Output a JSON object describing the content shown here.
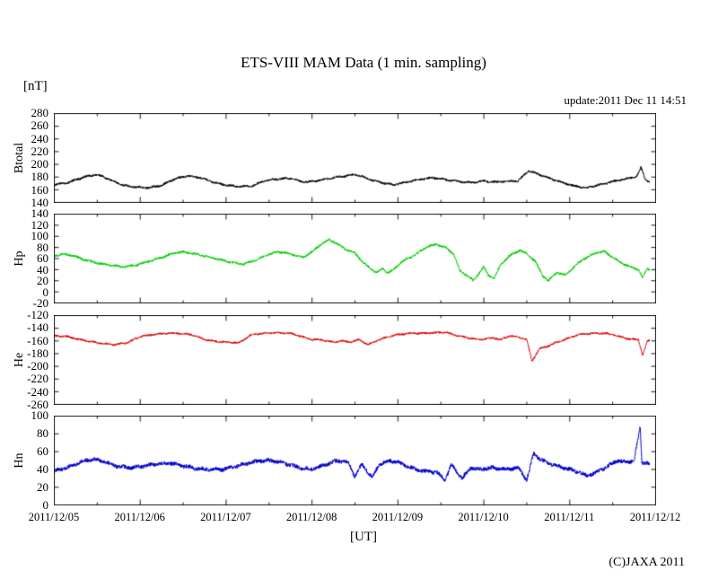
{
  "title": "ETS-VIII MAM Data (1 min. sampling)",
  "unit_label": "[nT]",
  "update_text": "update:2011 Dec 11 14:51",
  "copyright": "(C)JAXA 2011",
  "xaxis": {
    "label": "[UT]",
    "tick_labels": [
      "2011/12/05",
      "2011/12/06",
      "2011/12/07",
      "2011/12/08",
      "2011/12/09",
      "2011/12/10",
      "2011/12/11",
      "2011/12/12"
    ],
    "range_days": [
      0,
      7
    ],
    "minor_ticks_per_day": 2
  },
  "colors": {
    "btotal": "#000000",
    "hp": "#00CC00",
    "he": "#DD0000",
    "hn": "#0000CC",
    "frame": "#1a1a1a"
  },
  "chart_data": [
    {
      "type": "line",
      "name": "Btotal",
      "color_key": "btotal",
      "ylim": [
        140,
        280
      ],
      "yticks": [
        140,
        160,
        180,
        200,
        220,
        240,
        260,
        280
      ],
      "noise_amp": 1.7,
      "seed": 11,
      "keypoints": [
        [
          0,
          168
        ],
        [
          0.15,
          171
        ],
        [
          0.35,
          180
        ],
        [
          0.5,
          184
        ],
        [
          0.65,
          176
        ],
        [
          0.8,
          167
        ],
        [
          0.95,
          164
        ],
        [
          1.1,
          163
        ],
        [
          1.25,
          167
        ],
        [
          1.4,
          177
        ],
        [
          1.55,
          182
        ],
        [
          1.7,
          179
        ],
        [
          1.85,
          172
        ],
        [
          2.0,
          167
        ],
        [
          2.15,
          165
        ],
        [
          2.3,
          166
        ],
        [
          2.45,
          174
        ],
        [
          2.6,
          177
        ],
        [
          2.75,
          178
        ],
        [
          2.9,
          172
        ],
        [
          3.05,
          174
        ],
        [
          3.2,
          178
        ],
        [
          3.35,
          181
        ],
        [
          3.5,
          184
        ],
        [
          3.6,
          180
        ],
        [
          3.7,
          175
        ],
        [
          3.85,
          170
        ],
        [
          3.95,
          168
        ],
        [
          4.1,
          172
        ],
        [
          4.25,
          176
        ],
        [
          4.4,
          179
        ],
        [
          4.55,
          176
        ],
        [
          4.7,
          173
        ],
        [
          4.85,
          171
        ],
        [
          5.0,
          174
        ],
        [
          5.1,
          172
        ],
        [
          5.25,
          173
        ],
        [
          5.4,
          174
        ],
        [
          5.52,
          190
        ],
        [
          5.6,
          186
        ],
        [
          5.75,
          179
        ],
        [
          5.9,
          172
        ],
        [
          6.05,
          166
        ],
        [
          6.2,
          163
        ],
        [
          6.35,
          168
        ],
        [
          6.5,
          173
        ],
        [
          6.65,
          177
        ],
        [
          6.78,
          181
        ],
        [
          6.83,
          195
        ],
        [
          6.88,
          176
        ],
        [
          6.93,
          172
        ]
      ]
    },
    {
      "type": "line",
      "name": "Hp",
      "color_key": "hp",
      "ylim": [
        -20,
        140
      ],
      "yticks": [
        -20,
        0,
        20,
        40,
        60,
        80,
        100,
        120,
        140
      ],
      "noise_amp": 2.0,
      "seed": 22,
      "keypoints": [
        [
          0,
          65
        ],
        [
          0.1,
          68
        ],
        [
          0.2,
          66
        ],
        [
          0.35,
          58
        ],
        [
          0.5,
          52
        ],
        [
          0.65,
          48
        ],
        [
          0.8,
          45
        ],
        [
          0.95,
          48
        ],
        [
          1.1,
          55
        ],
        [
          1.25,
          62
        ],
        [
          1.4,
          70
        ],
        [
          1.5,
          72
        ],
        [
          1.65,
          68
        ],
        [
          1.8,
          63
        ],
        [
          1.95,
          57
        ],
        [
          2.1,
          52
        ],
        [
          2.2,
          50
        ],
        [
          2.35,
          57
        ],
        [
          2.5,
          68
        ],
        [
          2.6,
          72
        ],
        [
          2.7,
          70
        ],
        [
          2.8,
          66
        ],
        [
          2.9,
          62
        ],
        [
          3.0,
          72
        ],
        [
          3.1,
          85
        ],
        [
          3.2,
          94
        ],
        [
          3.3,
          86
        ],
        [
          3.4,
          76
        ],
        [
          3.5,
          70
        ],
        [
          3.6,
          52
        ],
        [
          3.68,
          42
        ],
        [
          3.75,
          35
        ],
        [
          3.82,
          42
        ],
        [
          3.88,
          34
        ],
        [
          3.95,
          40
        ],
        [
          4.05,
          55
        ],
        [
          4.15,
          62
        ],
        [
          4.25,
          72
        ],
        [
          4.35,
          82
        ],
        [
          4.45,
          85
        ],
        [
          4.55,
          80
        ],
        [
          4.65,
          68
        ],
        [
          4.72,
          38
        ],
        [
          4.8,
          30
        ],
        [
          4.88,
          20
        ],
        [
          4.95,
          35
        ],
        [
          5.0,
          45
        ],
        [
          5.05,
          30
        ],
        [
          5.12,
          25
        ],
        [
          5.2,
          50
        ],
        [
          5.3,
          65
        ],
        [
          5.42,
          75
        ],
        [
          5.5,
          68
        ],
        [
          5.6,
          55
        ],
        [
          5.68,
          30
        ],
        [
          5.75,
          20
        ],
        [
          5.85,
          35
        ],
        [
          5.95,
          30
        ],
        [
          6.05,
          45
        ],
        [
          6.15,
          58
        ],
        [
          6.3,
          70
        ],
        [
          6.4,
          73
        ],
        [
          6.5,
          62
        ],
        [
          6.6,
          52
        ],
        [
          6.7,
          45
        ],
        [
          6.8,
          40
        ],
        [
          6.85,
          25
        ],
        [
          6.9,
          42
        ],
        [
          6.93,
          40
        ]
      ]
    },
    {
      "type": "line",
      "name": "He",
      "color_key": "he",
      "ylim": [
        -260,
        -120
      ],
      "yticks": [
        -260,
        -240,
        -220,
        -200,
        -180,
        -160,
        -140,
        -120
      ],
      "noise_amp": 1.5,
      "seed": 33,
      "keypoints": [
        [
          0,
          -152
        ],
        [
          0.15,
          -153
        ],
        [
          0.3,
          -158
        ],
        [
          0.5,
          -163
        ],
        [
          0.7,
          -166
        ],
        [
          0.85,
          -163
        ],
        [
          1.0,
          -153
        ],
        [
          1.15,
          -150
        ],
        [
          1.3,
          -148
        ],
        [
          1.45,
          -148
        ],
        [
          1.6,
          -150
        ],
        [
          1.75,
          -158
        ],
        [
          1.9,
          -161
        ],
        [
          2.05,
          -162
        ],
        [
          2.15,
          -163
        ],
        [
          2.3,
          -150
        ],
        [
          2.45,
          -148
        ],
        [
          2.6,
          -147
        ],
        [
          2.75,
          -148
        ],
        [
          2.85,
          -152
        ],
        [
          3.0,
          -158
        ],
        [
          3.1,
          -158
        ],
        [
          3.25,
          -162
        ],
        [
          3.35,
          -160
        ],
        [
          3.45,
          -162
        ],
        [
          3.55,
          -158
        ],
        [
          3.65,
          -166
        ],
        [
          3.75,
          -160
        ],
        [
          3.85,
          -155
        ],
        [
          4.0,
          -150
        ],
        [
          4.15,
          -148
        ],
        [
          4.3,
          -148
        ],
        [
          4.45,
          -147
        ],
        [
          4.55,
          -146
        ],
        [
          4.7,
          -152
        ],
        [
          4.85,
          -156
        ],
        [
          4.95,
          -158
        ],
        [
          5.1,
          -155
        ],
        [
          5.2,
          -158
        ],
        [
          5.3,
          -152
        ],
        [
          5.4,
          -154
        ],
        [
          5.5,
          -158
        ],
        [
          5.56,
          -192
        ],
        [
          5.65,
          -172
        ],
        [
          5.75,
          -168
        ],
        [
          5.85,
          -162
        ],
        [
          6.0,
          -155
        ],
        [
          6.1,
          -150
        ],
        [
          6.25,
          -148
        ],
        [
          6.4,
          -148
        ],
        [
          6.5,
          -150
        ],
        [
          6.6,
          -154
        ],
        [
          6.7,
          -157
        ],
        [
          6.8,
          -158
        ],
        [
          6.85,
          -183
        ],
        [
          6.9,
          -162
        ],
        [
          6.93,
          -158
        ]
      ]
    },
    {
      "type": "line",
      "name": "Hn",
      "color_key": "hn",
      "ylim": [
        0,
        100
      ],
      "yticks": [
        0,
        20,
        40,
        60,
        80,
        100
      ],
      "noise_amp": 2.2,
      "seed": 44,
      "keypoints": [
        [
          0,
          38
        ],
        [
          0.15,
          42
        ],
        [
          0.3,
          48
        ],
        [
          0.45,
          52
        ],
        [
          0.6,
          48
        ],
        [
          0.75,
          43
        ],
        [
          0.9,
          42
        ],
        [
          1.05,
          44
        ],
        [
          1.2,
          46
        ],
        [
          1.35,
          47
        ],
        [
          1.5,
          44
        ],
        [
          1.65,
          41
        ],
        [
          1.8,
          40
        ],
        [
          1.95,
          40
        ],
        [
          2.1,
          43
        ],
        [
          2.25,
          47
        ],
        [
          2.4,
          50
        ],
        [
          2.55,
          50
        ],
        [
          2.7,
          46
        ],
        [
          2.85,
          42
        ],
        [
          3.0,
          40
        ],
        [
          3.15,
          45
        ],
        [
          3.3,
          50
        ],
        [
          3.42,
          48
        ],
        [
          3.5,
          32
        ],
        [
          3.58,
          46
        ],
        [
          3.7,
          31
        ],
        [
          3.78,
          45
        ],
        [
          3.9,
          50
        ],
        [
          4.0,
          48
        ],
        [
          4.15,
          42
        ],
        [
          4.3,
          38
        ],
        [
          4.45,
          37
        ],
        [
          4.55,
          28
        ],
        [
          4.62,
          45
        ],
        [
          4.75,
          30
        ],
        [
          4.85,
          42
        ],
        [
          4.95,
          40
        ],
        [
          5.1,
          42
        ],
        [
          5.25,
          40
        ],
        [
          5.4,
          42
        ],
        [
          5.5,
          28
        ],
        [
          5.58,
          58
        ],
        [
          5.65,
          52
        ],
        [
          5.72,
          48
        ],
        [
          5.85,
          44
        ],
        [
          6.0,
          40
        ],
        [
          6.1,
          37
        ],
        [
          6.2,
          33
        ],
        [
          6.3,
          36
        ],
        [
          6.45,
          44
        ],
        [
          6.55,
          50
        ],
        [
          6.65,
          48
        ],
        [
          6.75,
          50
        ],
        [
          6.82,
          88
        ],
        [
          6.84,
          48
        ],
        [
          6.9,
          47
        ],
        [
          6.93,
          46
        ]
      ]
    }
  ]
}
